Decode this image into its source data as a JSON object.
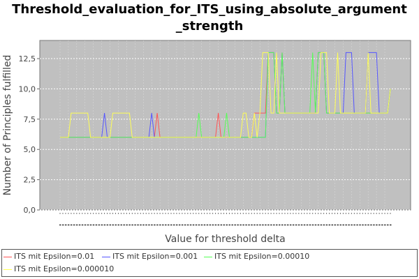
{
  "title": {
    "line1": "Threshold_evaluation_for_ITS_using_absolute_argument",
    "line2": "_strength"
  },
  "chart_data": {
    "type": "line",
    "title": "Threshold_evaluation_for_ITS_using_absolute_argument_strength",
    "xlabel": "Value for threshold delta",
    "ylabel": "Number of Principles fulfilled",
    "ylim": [
      0,
      14
    ],
    "yticks": [
      "0,0",
      "2,5",
      "5,0",
      "7,5",
      "10,0",
      "12,5"
    ],
    "ytick_values": [
      0,
      2.5,
      5,
      7.5,
      10,
      12.5
    ],
    "grid": true,
    "legend": "bottom",
    "background": "#c0c0c0",
    "n_points": 120,
    "series": [
      {
        "name": "ITS mit Epsilon=0.01",
        "color": "#ff5555",
        "values": [
          6,
          6,
          6,
          6,
          6,
          6,
          6,
          6,
          6,
          6,
          6,
          6,
          6,
          6,
          6,
          6,
          6,
          6,
          6,
          6,
          6,
          6,
          6,
          6,
          6,
          6,
          6,
          6,
          6,
          6,
          6,
          6,
          6,
          6,
          6,
          8,
          6,
          6,
          6,
          6,
          6,
          6,
          6,
          6,
          6,
          6,
          6,
          6,
          6,
          6,
          6,
          6,
          6,
          6,
          6,
          6,
          6,
          8,
          6,
          6,
          6,
          6,
          6,
          6,
          6,
          6,
          6,
          6,
          6,
          6,
          8,
          8,
          8,
          8,
          8,
          13,
          13,
          13,
          8,
          8,
          13,
          8,
          8,
          8,
          8,
          8,
          8,
          8,
          8,
          8,
          8,
          8,
          8,
          13,
          13,
          13,
          8,
          8,
          8,
          8,
          8,
          8,
          8,
          8,
          8,
          8,
          8,
          8,
          8,
          8,
          8,
          8,
          8,
          8,
          8,
          8,
          8,
          8,
          8,
          10
        ]
      },
      {
        "name": "ITS mit Epsilon=0.001",
        "color": "#5555ff",
        "values": [
          6,
          6,
          6,
          6,
          6,
          6,
          6,
          6,
          6,
          6,
          6,
          6,
          6,
          6,
          6,
          6,
          8,
          6,
          6,
          6,
          6,
          6,
          6,
          6,
          6,
          6,
          6,
          6,
          6,
          6,
          6,
          6,
          6,
          8,
          6,
          6,
          6,
          6,
          6,
          6,
          6,
          6,
          6,
          6,
          6,
          6,
          6,
          6,
          6,
          6,
          6,
          6,
          6,
          6,
          6,
          6,
          6,
          6,
          6,
          6,
          6,
          6,
          6,
          6,
          6,
          6,
          6,
          6,
          6,
          6,
          6,
          6,
          6,
          6,
          6,
          13,
          13,
          13,
          8,
          8,
          13,
          8,
          8,
          8,
          8,
          8,
          8,
          8,
          8,
          8,
          8,
          8,
          8,
          13,
          13,
          13,
          8,
          8,
          8,
          8,
          8,
          8,
          8,
          13,
          13,
          13,
          8,
          8,
          8,
          8,
          8,
          13,
          13,
          13,
          13,
          8,
          8,
          8,
          8,
          10
        ]
      },
      {
        "name": "ITS mit Epsilon=0.00010",
        "color": "#55ff55",
        "values": [
          6,
          6,
          6,
          6,
          6,
          6,
          6,
          6,
          6,
          6,
          6,
          6,
          6,
          6,
          6,
          6,
          6,
          6,
          6,
          6,
          6,
          6,
          6,
          6,
          6,
          6,
          6,
          6,
          6,
          6,
          6,
          6,
          6,
          6,
          6,
          6,
          6,
          6,
          6,
          6,
          6,
          6,
          6,
          6,
          6,
          6,
          6,
          6,
          6,
          6,
          8,
          6,
          6,
          6,
          6,
          6,
          6,
          6,
          6,
          6,
          8,
          6,
          6,
          6,
          6,
          6,
          6,
          6,
          6,
          6,
          6,
          6,
          6,
          6,
          6,
          13,
          13,
          13,
          8,
          8,
          13,
          8,
          8,
          8,
          8,
          8,
          8,
          8,
          8,
          8,
          8,
          13,
          8,
          13,
          13,
          13,
          8,
          8,
          8,
          8,
          8,
          8,
          8,
          8,
          8,
          8,
          8,
          8,
          8,
          8,
          8,
          8,
          8,
          8,
          8,
          8,
          8,
          8,
          8,
          10
        ]
      },
      {
        "name": "ITS mit Epsilon=0.000010",
        "color": "#ffff55",
        "values": [
          6,
          6,
          6,
          6,
          8,
          8,
          8,
          8,
          8,
          8,
          8,
          6,
          6,
          6,
          6,
          6,
          6,
          6,
          6,
          8,
          8,
          8,
          8,
          8,
          8,
          8,
          6,
          6,
          6,
          6,
          6,
          6,
          6,
          6,
          6,
          6,
          6,
          6,
          6,
          6,
          6,
          6,
          6,
          6,
          6,
          6,
          6,
          6,
          6,
          6,
          6,
          6,
          6,
          6,
          6,
          6,
          6,
          6,
          6,
          6,
          6,
          6,
          6,
          6,
          6,
          6,
          8,
          8,
          6,
          6,
          8,
          6,
          8,
          13,
          13,
          13,
          8,
          8,
          13,
          8,
          8,
          8,
          8,
          8,
          8,
          8,
          8,
          8,
          8,
          8,
          8,
          8,
          8,
          8,
          13,
          13,
          13,
          8,
          8,
          8,
          13,
          8,
          8,
          8,
          8,
          8,
          8,
          8,
          8,
          8,
          8,
          13,
          8,
          8,
          8,
          8,
          8,
          8,
          8,
          10
        ]
      }
    ]
  }
}
